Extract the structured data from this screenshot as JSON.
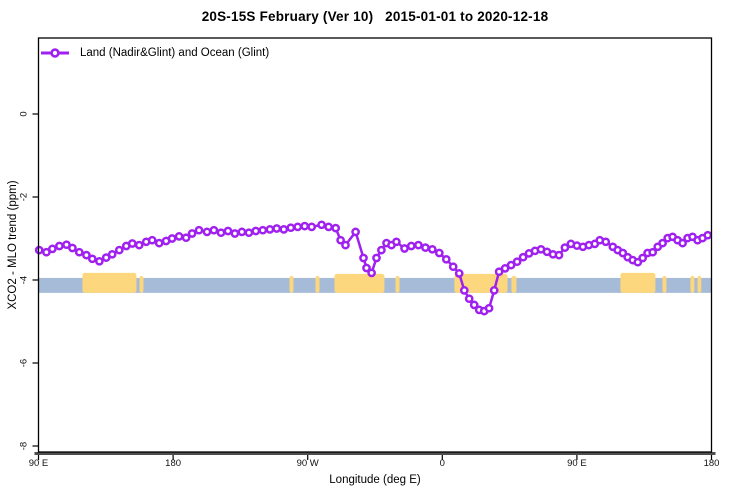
{
  "colors": {
    "series": "#A020F0",
    "marker_fill": "#FFFFFF",
    "ocean_band": "#A6BBD8",
    "land_band": "#FCD77E",
    "axis": "#000000",
    "axis_heavy": "#4D4D4D",
    "background": "#FFFFFF",
    "text": "#000000"
  },
  "chart_data": {
    "type": "line",
    "title": "20S-15S February (Ver 10)   2015-01-01 to 2020-12-18",
    "xlabel": "Longitude (deg E)",
    "ylabel": "XCO2 - MLO trend (ppm)",
    "legend_label": "Land (Nadir&Glint) and Ocean (Glint)",
    "legend_position": "top-left-inside",
    "grid": "off",
    "x_axis": {
      "range": [
        90,
        540
      ],
      "note": "longitude axis starts at 90E and wraps eastward past 180 back to 180",
      "ticks": [
        {
          "value": 90,
          "label": "90 E"
        },
        {
          "value": 180,
          "label": "180"
        },
        {
          "value": 270,
          "label": "90 W"
        },
        {
          "value": 360,
          "label": "0"
        },
        {
          "value": 450,
          "label": "90 E"
        },
        {
          "value": 540,
          "label": "180"
        }
      ]
    },
    "y_axis": {
      "range": [
        -8.2,
        1.8
      ],
      "ticks": [
        {
          "value": 0,
          "label": "0"
        },
        {
          "value": -2,
          "label": "-2"
        },
        {
          "value": -4,
          "label": "-4"
        },
        {
          "value": -6,
          "label": "-6"
        },
        {
          "value": -8,
          "label": "-8"
        }
      ]
    },
    "surface_band": {
      "description": "horizontal strip marking surface type by longitude: blue = ocean, orange = land",
      "top_ppm": -3.95,
      "bottom_ppm": -4.31,
      "land_segments": [
        {
          "from": 119.4,
          "to": 155.5,
          "raise": 5
        },
        {
          "from": 157.5,
          "to": 160.2,
          "raise": 2
        },
        {
          "from": 257.8,
          "to": 260.5,
          "raise": 2
        },
        {
          "from": 275.2,
          "to": 277.9,
          "raise": 2
        },
        {
          "from": 287.9,
          "to": 321.3,
          "raise": 4
        },
        {
          "from": 328.7,
          "to": 331.4,
          "raise": 2
        },
        {
          "from": 368.1,
          "to": 403.6,
          "raise": 4
        },
        {
          "from": 406.2,
          "to": 409.6,
          "raise": 2
        },
        {
          "from": 479.1,
          "to": 502.5,
          "raise": 5
        },
        {
          "from": 507.2,
          "to": 509.9,
          "raise": 2
        },
        {
          "from": 525.9,
          "to": 528.6,
          "raise": 2
        },
        {
          "from": 530.6,
          "to": 533.2,
          "raise": 2
        }
      ]
    },
    "series": [
      {
        "name": "Land (Nadir&Glint) and Ocean (Glint)",
        "marker": "open-circle",
        "points": [
          [
            90.5,
            -3.28
          ],
          [
            95.3,
            -3.33
          ],
          [
            99.3,
            -3.25
          ],
          [
            104,
            -3.18
          ],
          [
            108.7,
            -3.15
          ],
          [
            112.7,
            -3.23
          ],
          [
            117.3,
            -3.33
          ],
          [
            122,
            -3.4
          ],
          [
            126,
            -3.49
          ],
          [
            130.7,
            -3.55
          ],
          [
            135.3,
            -3.46
          ],
          [
            139.3,
            -3.38
          ],
          [
            144,
            -3.28
          ],
          [
            148.7,
            -3.18
          ],
          [
            152.7,
            -3.12
          ],
          [
            157.3,
            -3.16
          ],
          [
            162,
            -3.08
          ],
          [
            166,
            -3.04
          ],
          [
            170.7,
            -3.11
          ],
          [
            175.3,
            -3.06
          ],
          [
            179.3,
            -3.0
          ],
          [
            184,
            -2.95
          ],
          [
            188.7,
            -2.98
          ],
          [
            192.7,
            -2.88
          ],
          [
            197.3,
            -2.8
          ],
          [
            202.7,
            -2.84
          ],
          [
            207.3,
            -2.8
          ],
          [
            212,
            -2.86
          ],
          [
            216.7,
            -2.82
          ],
          [
            221.3,
            -2.88
          ],
          [
            226,
            -2.84
          ],
          [
            230.7,
            -2.86
          ],
          [
            235.3,
            -2.82
          ],
          [
            240,
            -2.8
          ],
          [
            244.7,
            -2.78
          ],
          [
            249.3,
            -2.76
          ],
          [
            254,
            -2.78
          ],
          [
            258.7,
            -2.74
          ],
          [
            263.3,
            -2.72
          ],
          [
            268,
            -2.7
          ],
          [
            272.7,
            -2.72
          ],
          [
            279.3,
            -2.67
          ],
          [
            284,
            -2.72
          ],
          [
            288.7,
            -2.75
          ],
          [
            292,
            -3.04
          ],
          [
            295.3,
            -3.16
          ],
          [
            302,
            -2.84
          ],
          [
            307.3,
            -3.47
          ],
          [
            309.3,
            -3.71
          ],
          [
            312.7,
            -3.83
          ],
          [
            316,
            -3.47
          ],
          [
            319.3,
            -3.28
          ],
          [
            322.7,
            -3.11
          ],
          [
            326,
            -3.16
          ],
          [
            329.3,
            -3.08
          ],
          [
            334.7,
            -3.24
          ],
          [
            339.3,
            -3.18
          ],
          [
            344,
            -3.16
          ],
          [
            348.7,
            -3.22
          ],
          [
            353.3,
            -3.26
          ],
          [
            358,
            -3.35
          ],
          [
            362.7,
            -3.5
          ],
          [
            367.3,
            -3.68
          ],
          [
            371.3,
            -3.84
          ],
          [
            374.7,
            -4.25
          ],
          [
            378,
            -4.45
          ],
          [
            381.3,
            -4.6
          ],
          [
            384.7,
            -4.72
          ],
          [
            388,
            -4.75
          ],
          [
            391.3,
            -4.68
          ],
          [
            394.7,
            -4.25
          ],
          [
            398,
            -3.8
          ],
          [
            402,
            -3.72
          ],
          [
            406,
            -3.64
          ],
          [
            410,
            -3.56
          ],
          [
            414,
            -3.45
          ],
          [
            418,
            -3.36
          ],
          [
            422,
            -3.3
          ],
          [
            426,
            -3.26
          ],
          [
            430,
            -3.32
          ],
          [
            434,
            -3.38
          ],
          [
            438,
            -3.4
          ],
          [
            442,
            -3.22
          ],
          [
            446,
            -3.13
          ],
          [
            450,
            -3.17
          ],
          [
            454,
            -3.2
          ],
          [
            458,
            -3.16
          ],
          [
            462,
            -3.13
          ],
          [
            465.3,
            -3.04
          ],
          [
            469.3,
            -3.08
          ],
          [
            474,
            -3.2
          ],
          [
            477.3,
            -3.28
          ],
          [
            480.7,
            -3.35
          ],
          [
            484,
            -3.45
          ],
          [
            487.3,
            -3.52
          ],
          [
            490.7,
            -3.57
          ],
          [
            494,
            -3.47
          ],
          [
            497.3,
            -3.35
          ],
          [
            500.7,
            -3.33
          ],
          [
            504,
            -3.2
          ],
          [
            507.3,
            -3.11
          ],
          [
            510.7,
            -2.99
          ],
          [
            514,
            -2.96
          ],
          [
            517.3,
            -3.04
          ],
          [
            520.7,
            -3.11
          ],
          [
            524,
            -2.99
          ],
          [
            527.3,
            -2.96
          ],
          [
            530.7,
            -3.04
          ],
          [
            534,
            -2.99
          ],
          [
            537.5,
            -2.92
          ]
        ]
      }
    ]
  }
}
